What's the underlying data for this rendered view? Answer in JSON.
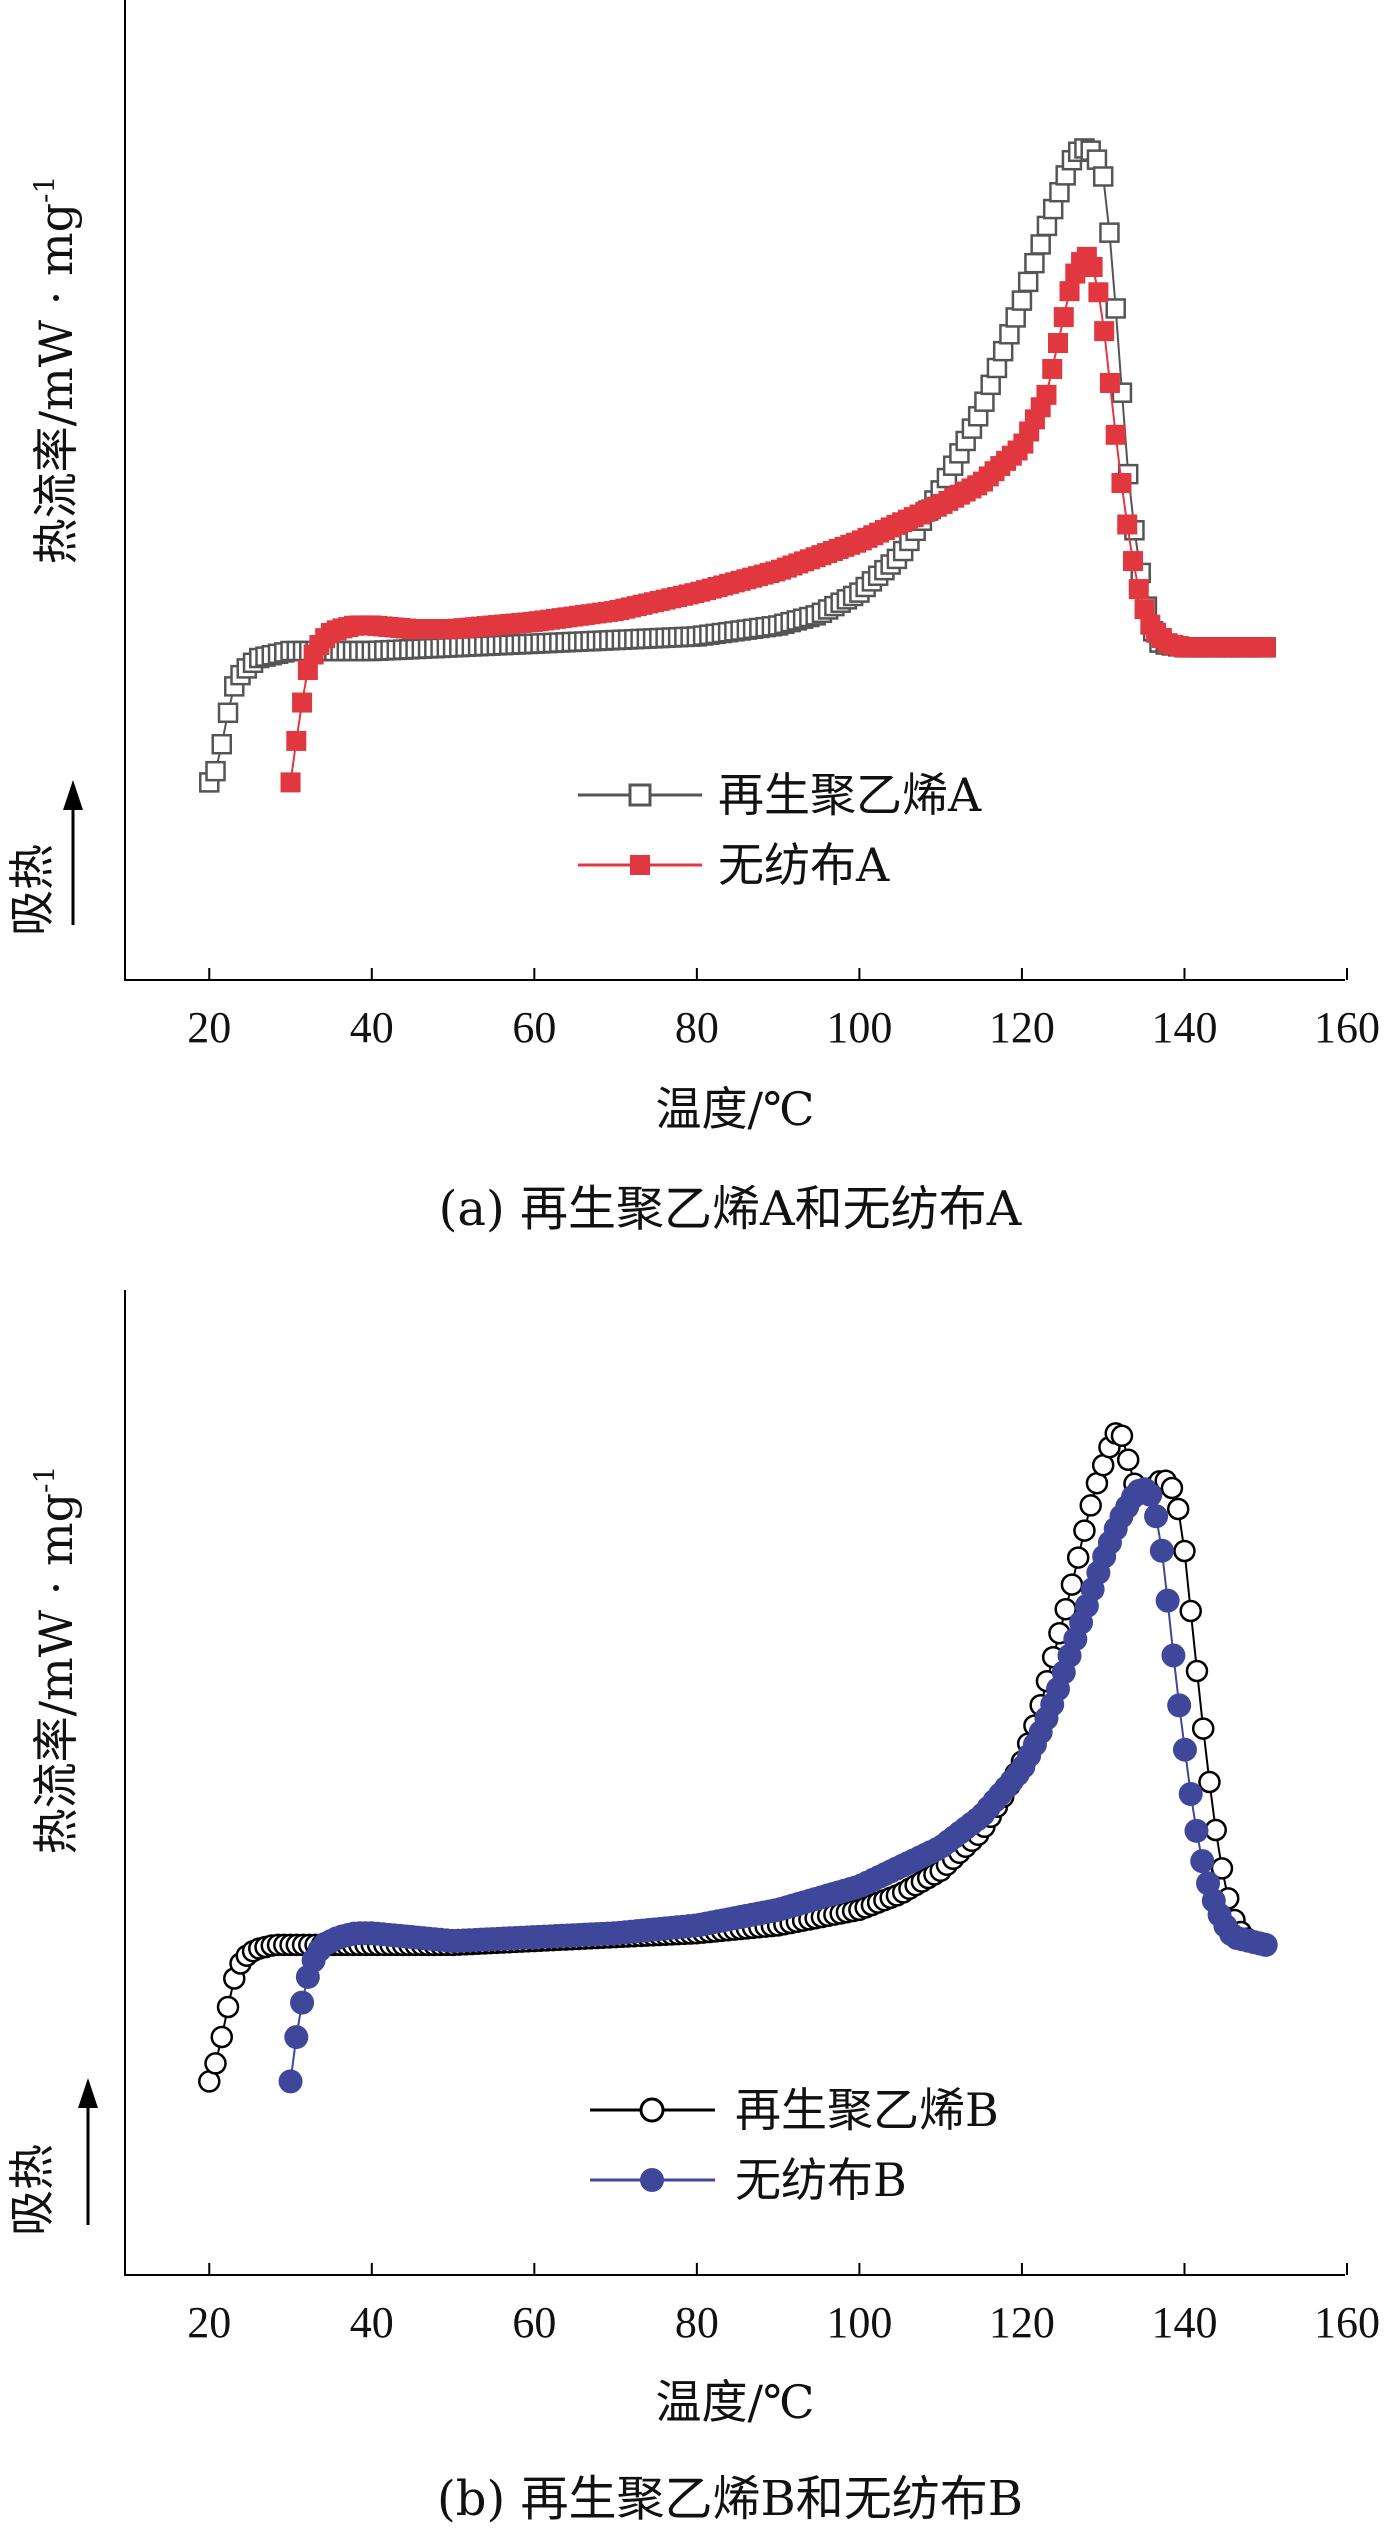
{
  "chart_data": [
    {
      "type": "scatter",
      "caption": "(a) 再生聚乙烯A和无纺布A",
      "xlabel": "温度/℃",
      "ylabel": "热流率/mW · mg",
      "ylabel_sup": "-1",
      "endo_label": "吸热",
      "xlim": [
        10,
        160
      ],
      "xticks": [
        "20",
        "40",
        "60",
        "80",
        "100",
        "120",
        "140",
        "160"
      ],
      "ylim": [
        0,
        100
      ],
      "series": [
        {
          "name": "再生聚乙烯A",
          "marker": "open-square",
          "color": "#555555",
          "x": [
            20,
            21,
            22,
            23,
            24,
            25,
            26,
            28,
            30,
            35,
            40,
            50,
            60,
            70,
            80,
            90,
            95,
            100,
            105,
            110,
            115,
            120,
            123,
            125,
            126,
            127,
            128,
            129,
            130,
            131,
            132,
            133,
            134,
            135,
            136,
            137,
            140,
            145,
            150
          ],
          "y": [
            12,
            14,
            20,
            25,
            27,
            28,
            29,
            29.5,
            30,
            30,
            30,
            30.5,
            31,
            31.5,
            32,
            33.5,
            35,
            38,
            43,
            52,
            63,
            78,
            88,
            94,
            97,
            98.5,
            99,
            98,
            95,
            85,
            70,
            55,
            45,
            38,
            33,
            31,
            30.5,
            30.5,
            30.5
          ]
        },
        {
          "name": "无纺布A",
          "marker": "filled-square",
          "color": "#E0383E",
          "x": [
            30,
            31,
            32,
            33,
            34,
            35,
            36,
            38,
            40,
            45,
            50,
            60,
            70,
            80,
            90,
            100,
            105,
            110,
            115,
            120,
            123,
            125,
            126,
            127,
            128,
            129,
            130,
            131,
            132,
            133,
            134,
            135,
            136,
            138,
            140,
            145,
            150
          ],
          "y": [
            12,
            20,
            27,
            30,
            31.5,
            32.5,
            33,
            33.5,
            33.5,
            33,
            33,
            34,
            35.5,
            38,
            41,
            45,
            47.5,
            50,
            53,
            58,
            65,
            75,
            80,
            83,
            84,
            82,
            75,
            65,
            55,
            47,
            40,
            36,
            33,
            31,
            30.5,
            30.5,
            30.5
          ]
        }
      ]
    },
    {
      "type": "scatter",
      "caption": "(b) 再生聚乙烯B和无纺布B",
      "xlabel": "温度/℃",
      "ylabel": "热流率/mW · mg",
      "ylabel_sup": "-1",
      "endo_label": "吸热",
      "xlim": [
        10,
        160
      ],
      "xticks": [
        "20",
        "40",
        "60",
        "80",
        "100",
        "120",
        "140",
        "160"
      ],
      "ylim": [
        0,
        100
      ],
      "series": [
        {
          "name": "再生聚乙烯B",
          "marker": "open-circle",
          "color": "#000000",
          "x": [
            20,
            21,
            22,
            23,
            24,
            25,
            26,
            28,
            30,
            35,
            40,
            50,
            60,
            70,
            80,
            90,
            100,
            105,
            110,
            115,
            118,
            120,
            122,
            124,
            126,
            128,
            129,
            130,
            131,
            132,
            133,
            134,
            135,
            136,
            137,
            138,
            139,
            140,
            141,
            142,
            143,
            144,
            145,
            146,
            147,
            148,
            150
          ],
          "y": [
            12,
            15,
            20,
            25,
            27.5,
            28.5,
            29,
            29.5,
            29.5,
            29.5,
            29.5,
            29.5,
            30,
            30.5,
            31,
            32,
            34,
            36,
            39,
            44,
            49,
            53,
            59,
            67,
            75,
            84,
            88,
            91,
            94,
            96,
            92,
            88,
            87,
            88,
            89,
            89,
            87,
            80,
            70,
            60,
            51,
            43,
            37,
            33,
            31,
            30,
            29.5
          ]
        },
        {
          "name": "无纺布B",
          "marker": "filled-circle",
          "color": "#3F479A",
          "x": [
            30,
            31,
            32,
            33,
            34,
            35,
            36,
            38,
            40,
            45,
            50,
            60,
            70,
            80,
            90,
            100,
            105,
            110,
            115,
            120,
            122,
            124,
            126,
            128,
            130,
            132,
            134,
            135,
            136,
            137,
            138,
            139,
            140,
            141,
            142,
            143,
            144,
            145,
            146,
            148,
            150
          ],
          "y": [
            12,
            20,
            25,
            28,
            29.5,
            30,
            30.5,
            31,
            31,
            30.5,
            30,
            30.5,
            31,
            32,
            34,
            37,
            39.5,
            42,
            46,
            52,
            56,
            61,
            67,
            73,
            79,
            84,
            87.5,
            88,
            87,
            82,
            73,
            63,
            55,
            47,
            41,
            37,
            34,
            32,
            30.5,
            30,
            29.5
          ]
        }
      ]
    }
  ]
}
